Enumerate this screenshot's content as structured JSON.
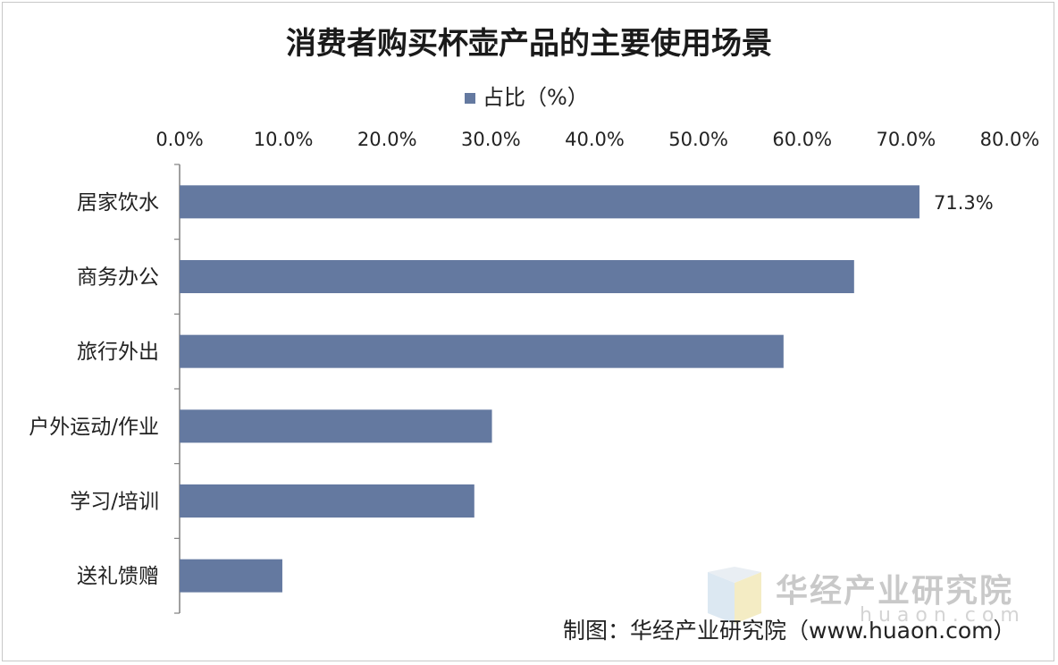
{
  "chart_data": {
    "type": "bar",
    "orientation": "horizontal",
    "title": "消费者购买杯壶产品的主要使用场景",
    "legend": {
      "label": "占比（%）",
      "placement": "top"
    },
    "categories": [
      "居家饮水",
      "商务办公",
      "旅行外出",
      "户外运动/作业",
      "学习/培训",
      "送礼馈赠"
    ],
    "series": [
      {
        "name": "占比（%）",
        "values": [
          71.3,
          65.0,
          58.2,
          30.1,
          28.4,
          9.9
        ]
      }
    ],
    "data_labels": [
      "71.3%",
      "",
      "",
      "",
      "",
      ""
    ],
    "xlim": [
      0,
      80
    ],
    "xticks": [
      "0.0%",
      "10.0%",
      "20.0%",
      "30.0%",
      "40.0%",
      "50.0%",
      "60.0%",
      "70.0%",
      "80.0%"
    ],
    "x_axis_position": "top",
    "grid": false,
    "colors": {
      "bar": "#6479a0",
      "axis": "#808080",
      "text": "#222222"
    }
  },
  "footer": {
    "credit": "制图：华经产业研究院（www.huaon.com）",
    "watermark_name": "华经产业研究院",
    "watermark_url": "huaon.com"
  }
}
